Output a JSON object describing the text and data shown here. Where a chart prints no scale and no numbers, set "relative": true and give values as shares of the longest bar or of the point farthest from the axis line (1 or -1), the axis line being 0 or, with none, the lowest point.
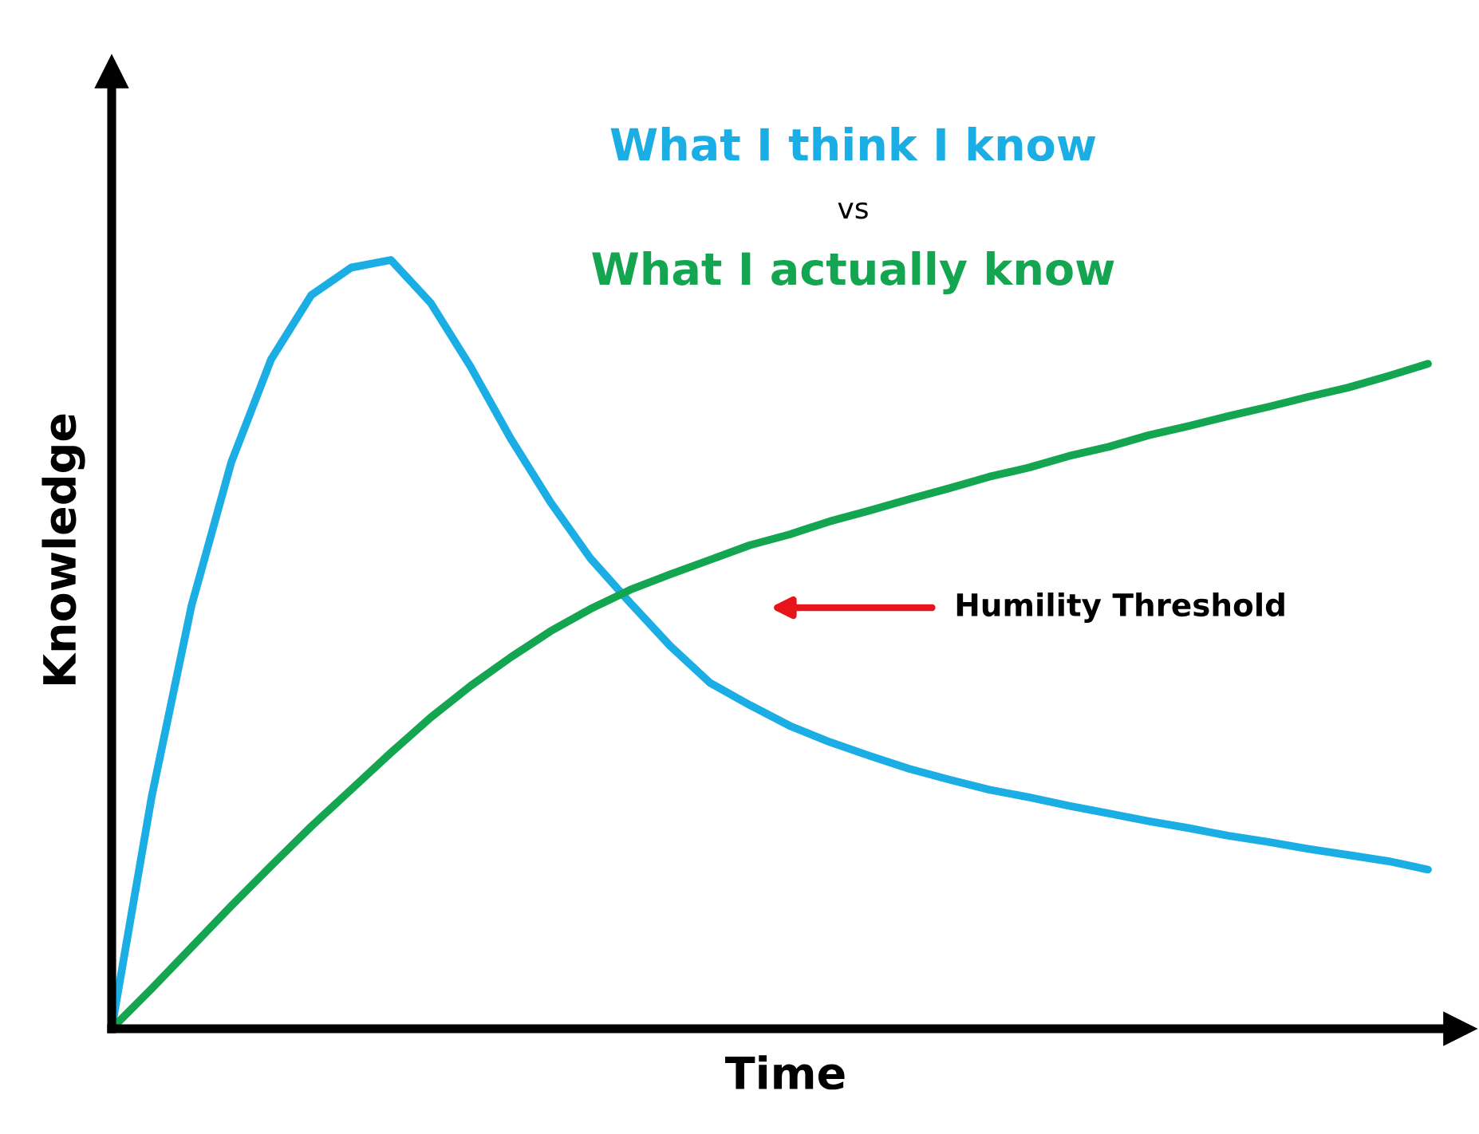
{
  "chart_data": {
    "type": "line",
    "relative": true,
    "xlabel": "Time",
    "ylabel": "Knowledge",
    "legend": "top",
    "marker": "none",
    "line_style": "solid",
    "categories": [
      null,
      null,
      null,
      null,
      null,
      null,
      null,
      null,
      null,
      null,
      null,
      null,
      null,
      null,
      null,
      null,
      null,
      null,
      null,
      null,
      null,
      null,
      null,
      null,
      null,
      null,
      null,
      null,
      null,
      null,
      null,
      null,
      null,
      null
    ],
    "series": [
      {
        "name": "What I think I know",
        "color": "#1aaee5",
        "values": [
          0,
          0.301,
          0.55,
          0.737,
          0.871,
          0.954,
          0.99,
          1.0,
          0.944,
          0.861,
          0.768,
          0.685,
          0.612,
          0.554,
          0.498,
          0.45,
          0.421,
          0.394,
          0.373,
          0.355,
          0.338,
          0.324,
          0.311,
          0.301,
          0.29,
          0.28,
          0.27,
          0.261,
          0.251,
          0.243,
          0.234,
          0.226,
          0.218,
          0.207
        ]
      },
      {
        "name": "What I actually know",
        "color": "#13a54f",
        "values": [
          0,
          0.052,
          0.106,
          0.16,
          0.212,
          0.263,
          0.311,
          0.359,
          0.405,
          0.446,
          0.483,
          0.517,
          0.546,
          0.571,
          0.591,
          0.61,
          0.629,
          0.643,
          0.66,
          0.674,
          0.689,
          0.703,
          0.718,
          0.73,
          0.745,
          0.757,
          0.772,
          0.784,
          0.797,
          0.809,
          0.822,
          0.834,
          0.849,
          0.865
        ]
      }
    ],
    "annotations": [
      "vs",
      "Humility Threshold"
    ]
  }
}
